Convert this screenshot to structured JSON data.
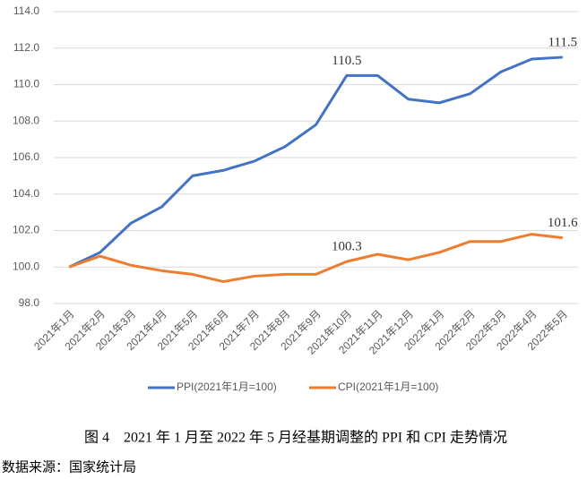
{
  "chart_data": {
    "type": "line",
    "categories": [
      "2021年1月",
      "2021年2月",
      "2021年3月",
      "2021年4月",
      "2021年5月",
      "2021年6月",
      "2021年7月",
      "2021年8月",
      "2021年9月",
      "2021年10月",
      "2021年11月",
      "2021年12月",
      "2022年1月",
      "2022年2月",
      "2022年3月",
      "2022年4月",
      "2022年5月"
    ],
    "series": [
      {
        "name": "PPI(2021年1月=100)",
        "color": "#4472c4",
        "values": [
          100.0,
          100.8,
          102.4,
          103.3,
          105.0,
          105.3,
          105.8,
          106.6,
          107.8,
          110.5,
          110.5,
          109.2,
          109.0,
          109.5,
          110.7,
          111.4,
          111.5
        ],
        "value_labels": [
          null,
          null,
          null,
          null,
          null,
          null,
          null,
          null,
          null,
          "110.5",
          null,
          null,
          null,
          null,
          null,
          null,
          "111.5"
        ]
      },
      {
        "name": "CPI(2021年1月=100)",
        "color": "#ed7d31",
        "values": [
          100.0,
          100.6,
          100.1,
          99.8,
          99.6,
          99.2,
          99.5,
          99.6,
          99.6,
          100.3,
          100.7,
          100.4,
          100.8,
          101.4,
          101.4,
          101.8,
          101.6
        ],
        "value_labels": [
          null,
          null,
          null,
          null,
          null,
          null,
          null,
          null,
          null,
          "100.3",
          null,
          null,
          null,
          null,
          null,
          null,
          "101.6"
        ]
      }
    ],
    "ylim": [
      98,
      114
    ],
    "yticks": [
      {
        "value": 98,
        "label": "98.0"
      },
      {
        "value": 100,
        "label": "100.0"
      },
      {
        "value": 102,
        "label": "102.0"
      },
      {
        "value": 104,
        "label": "104.0"
      },
      {
        "value": 106,
        "label": "106.0"
      },
      {
        "value": 108,
        "label": "108.0"
      },
      {
        "value": 110,
        "label": "110.0"
      },
      {
        "value": 112,
        "label": "112.0"
      },
      {
        "value": 114,
        "label": "114.0"
      }
    ],
    "grid": true,
    "legend": "bottom",
    "caption": "图 4　2021 年 1 月至 2022 年 5 月经基期调整的 PPI 和 CPI 走势情况",
    "source": "数据来源：国家统计局"
  }
}
